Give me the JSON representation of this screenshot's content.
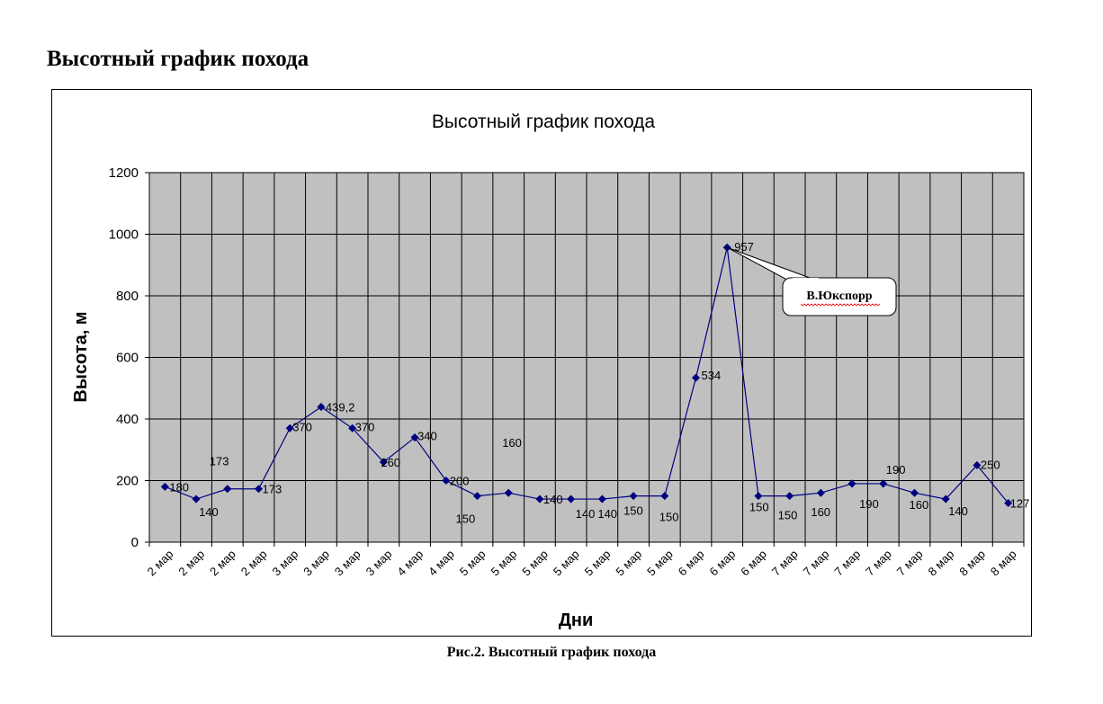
{
  "document": {
    "heading": "Высотный график похода",
    "caption": "Рис.2. Высотный график похода"
  },
  "colors": {
    "plot_background": "#c0c0c0",
    "series": "#000080",
    "gridline": "#000000"
  },
  "chart_data": {
    "type": "line",
    "title": "Высотный график похода",
    "xlabel": "Дни",
    "ylabel": "Высота, м",
    "ylim": [
      0,
      1200
    ],
    "ytick_step": 200,
    "grid": true,
    "legend": "none",
    "categories": [
      "2 мар",
      "2 мар",
      "2 мар",
      "2 мар",
      "3 мар",
      "3 мар",
      "3 мар",
      "3 мар",
      "4 мар",
      "4 мар",
      "5 мар",
      "5 мар",
      "5 мар",
      "5 мар",
      "5 мар",
      "5 мар",
      "5 мар",
      "6 мар",
      "6 мар",
      "6 мар",
      "7 мар",
      "7 мар",
      "7 мар",
      "7 мар",
      "7 мар",
      "8 мар",
      "8 мар",
      "8 мар"
    ],
    "series": [
      {
        "values": [
          180,
          140,
          173,
          173,
          370,
          439.2,
          370,
          260,
          340,
          200,
          150,
          160,
          140,
          140,
          140,
          150,
          150,
          534,
          957,
          150,
          150,
          160,
          190,
          190,
          160,
          140,
          250,
          127
        ],
        "labels": [
          "180",
          "140",
          "173",
          "173",
          "370",
          "439,2",
          "370",
          "260",
          "340",
          "200",
          "150",
          "160",
          "140",
          "140",
          "140",
          "150",
          "150",
          "534",
          "957",
          "150",
          "150",
          "160",
          "190",
          "190",
          "160",
          "140",
          "250",
          "127"
        ]
      }
    ],
    "annotations": [
      {
        "text": "В.Юкспорр",
        "point_index": 18
      }
    ]
  }
}
